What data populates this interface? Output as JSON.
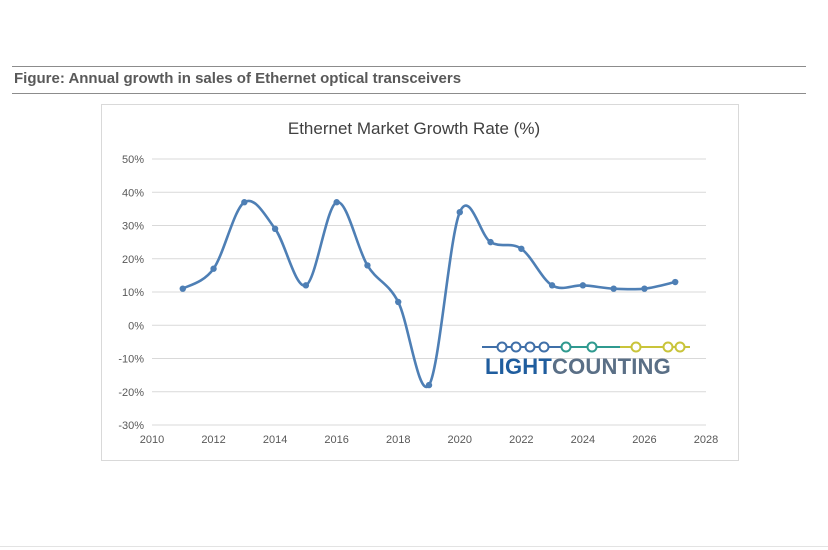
{
  "figure_caption": "Figure: Annual growth in sales of Ethernet optical transceivers",
  "chart_data": {
    "type": "line",
    "title": "Ethernet Market Growth Rate (%)",
    "xlabel": "",
    "ylabel": "",
    "x_ticks": [
      "2010",
      "2012",
      "2014",
      "2016",
      "2018",
      "2020",
      "2022",
      "2024",
      "2026",
      "2028"
    ],
    "y_ticks": [
      "50%",
      "40%",
      "30%",
      "20%",
      "10%",
      "0%",
      "-10%",
      "-20%",
      "-30%"
    ],
    "xlim": [
      2010,
      2028
    ],
    "ylim": [
      -30,
      50
    ],
    "grid": "horizontal",
    "smooth": true,
    "line_color": "#4e7fb5",
    "series": [
      {
        "x": [
          2011,
          2012,
          2013,
          2014,
          2015,
          2016,
          2017,
          2018,
          2019,
          2020,
          2021,
          2022,
          2023,
          2024,
          2025,
          2026,
          2027
        ],
        "values": [
          11,
          17,
          37,
          29,
          12,
          37,
          18,
          7,
          -18,
          34,
          25,
          23,
          12,
          12,
          11,
          11,
          13
        ]
      }
    ]
  },
  "logo": {
    "text_part1": "LIGHT",
    "text_part2": "COUNTING",
    "color_part1": "#1f5d9e",
    "color_part2": "#5a6f86",
    "chain_left_color": "#3f6fa8",
    "chain_mid_color": "#2f9a8f",
    "chain_right_color": "#c9c43a"
  }
}
